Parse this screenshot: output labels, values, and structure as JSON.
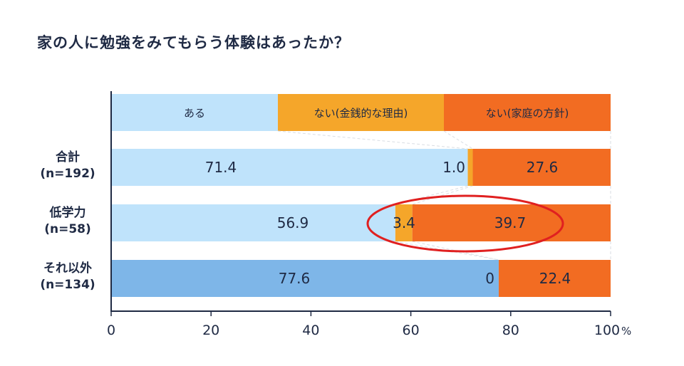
{
  "chart_data": {
    "type": "bar",
    "title": "家の人に勉強をみてもらう体験はあったか？",
    "legend": [
      {
        "name": "ある",
        "color": "#bfe3fb"
      },
      {
        "name": "ない(金銭的な理由)",
        "color": "#f5a62a"
      },
      {
        "name": "ない(家庭の方針)",
        "color": "#f26c22"
      }
    ],
    "categories": [
      {
        "name": "合計",
        "n": "(n=192)"
      },
      {
        "name": "低学力",
        "n": "(n=58)"
      },
      {
        "name": "それ以外",
        "n": "(n=134)"
      }
    ],
    "series": [
      {
        "name": "ある",
        "values": [
          71.4,
          56.9,
          77.6
        ],
        "labels": [
          "71.4",
          "56.9",
          "77.6"
        ]
      },
      {
        "name": "ない(金銭的な理由)",
        "values": [
          1.0,
          3.4,
          0
        ],
        "labels": [
          "1.0",
          "3.4",
          "0"
        ]
      },
      {
        "name": "ない(家庭の方針)",
        "values": [
          27.6,
          39.7,
          22.4
        ],
        "labels": [
          "27.6",
          "39.7",
          "22.4"
        ]
      }
    ],
    "highlight_color": "#1f6fd0",
    "x_ticks": [
      "0",
      "20",
      "40",
      "60",
      "80",
      "100"
    ],
    "x_unit": "%",
    "xlim": [
      0,
      100
    ],
    "highlighted_row": "低学力",
    "annotation": {
      "type": "ellipse",
      "target": "低学力: ない",
      "color": "#e02020"
    }
  }
}
